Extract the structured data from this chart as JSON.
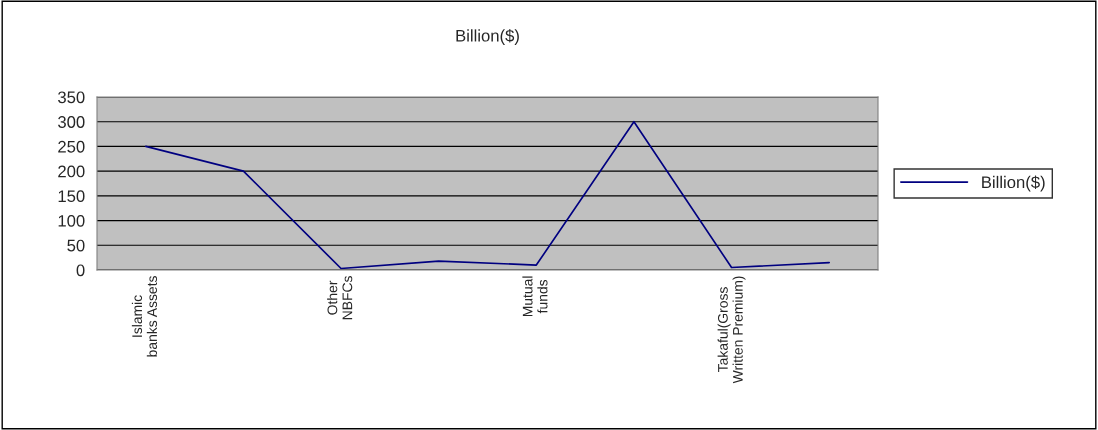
{
  "chart_data": {
    "type": "line",
    "title": "Billion($)",
    "categories": [
      "Islamic banks Assets",
      null,
      "Other NBFCs",
      null,
      "Mutual funds",
      null,
      "Takaful(Gross Written Premium)",
      null
    ],
    "series": [
      {
        "name": "Billion($)",
        "color": "#000080",
        "values": [
          250,
          200,
          3,
          18,
          10,
          300,
          5,
          15
        ]
      }
    ],
    "ylim": [
      0,
      350
    ],
    "yticks": [
      0,
      50,
      100,
      150,
      200,
      250,
      300,
      350
    ],
    "grid": "y",
    "legend": "right",
    "marker": "none",
    "line_style": "solid"
  }
}
